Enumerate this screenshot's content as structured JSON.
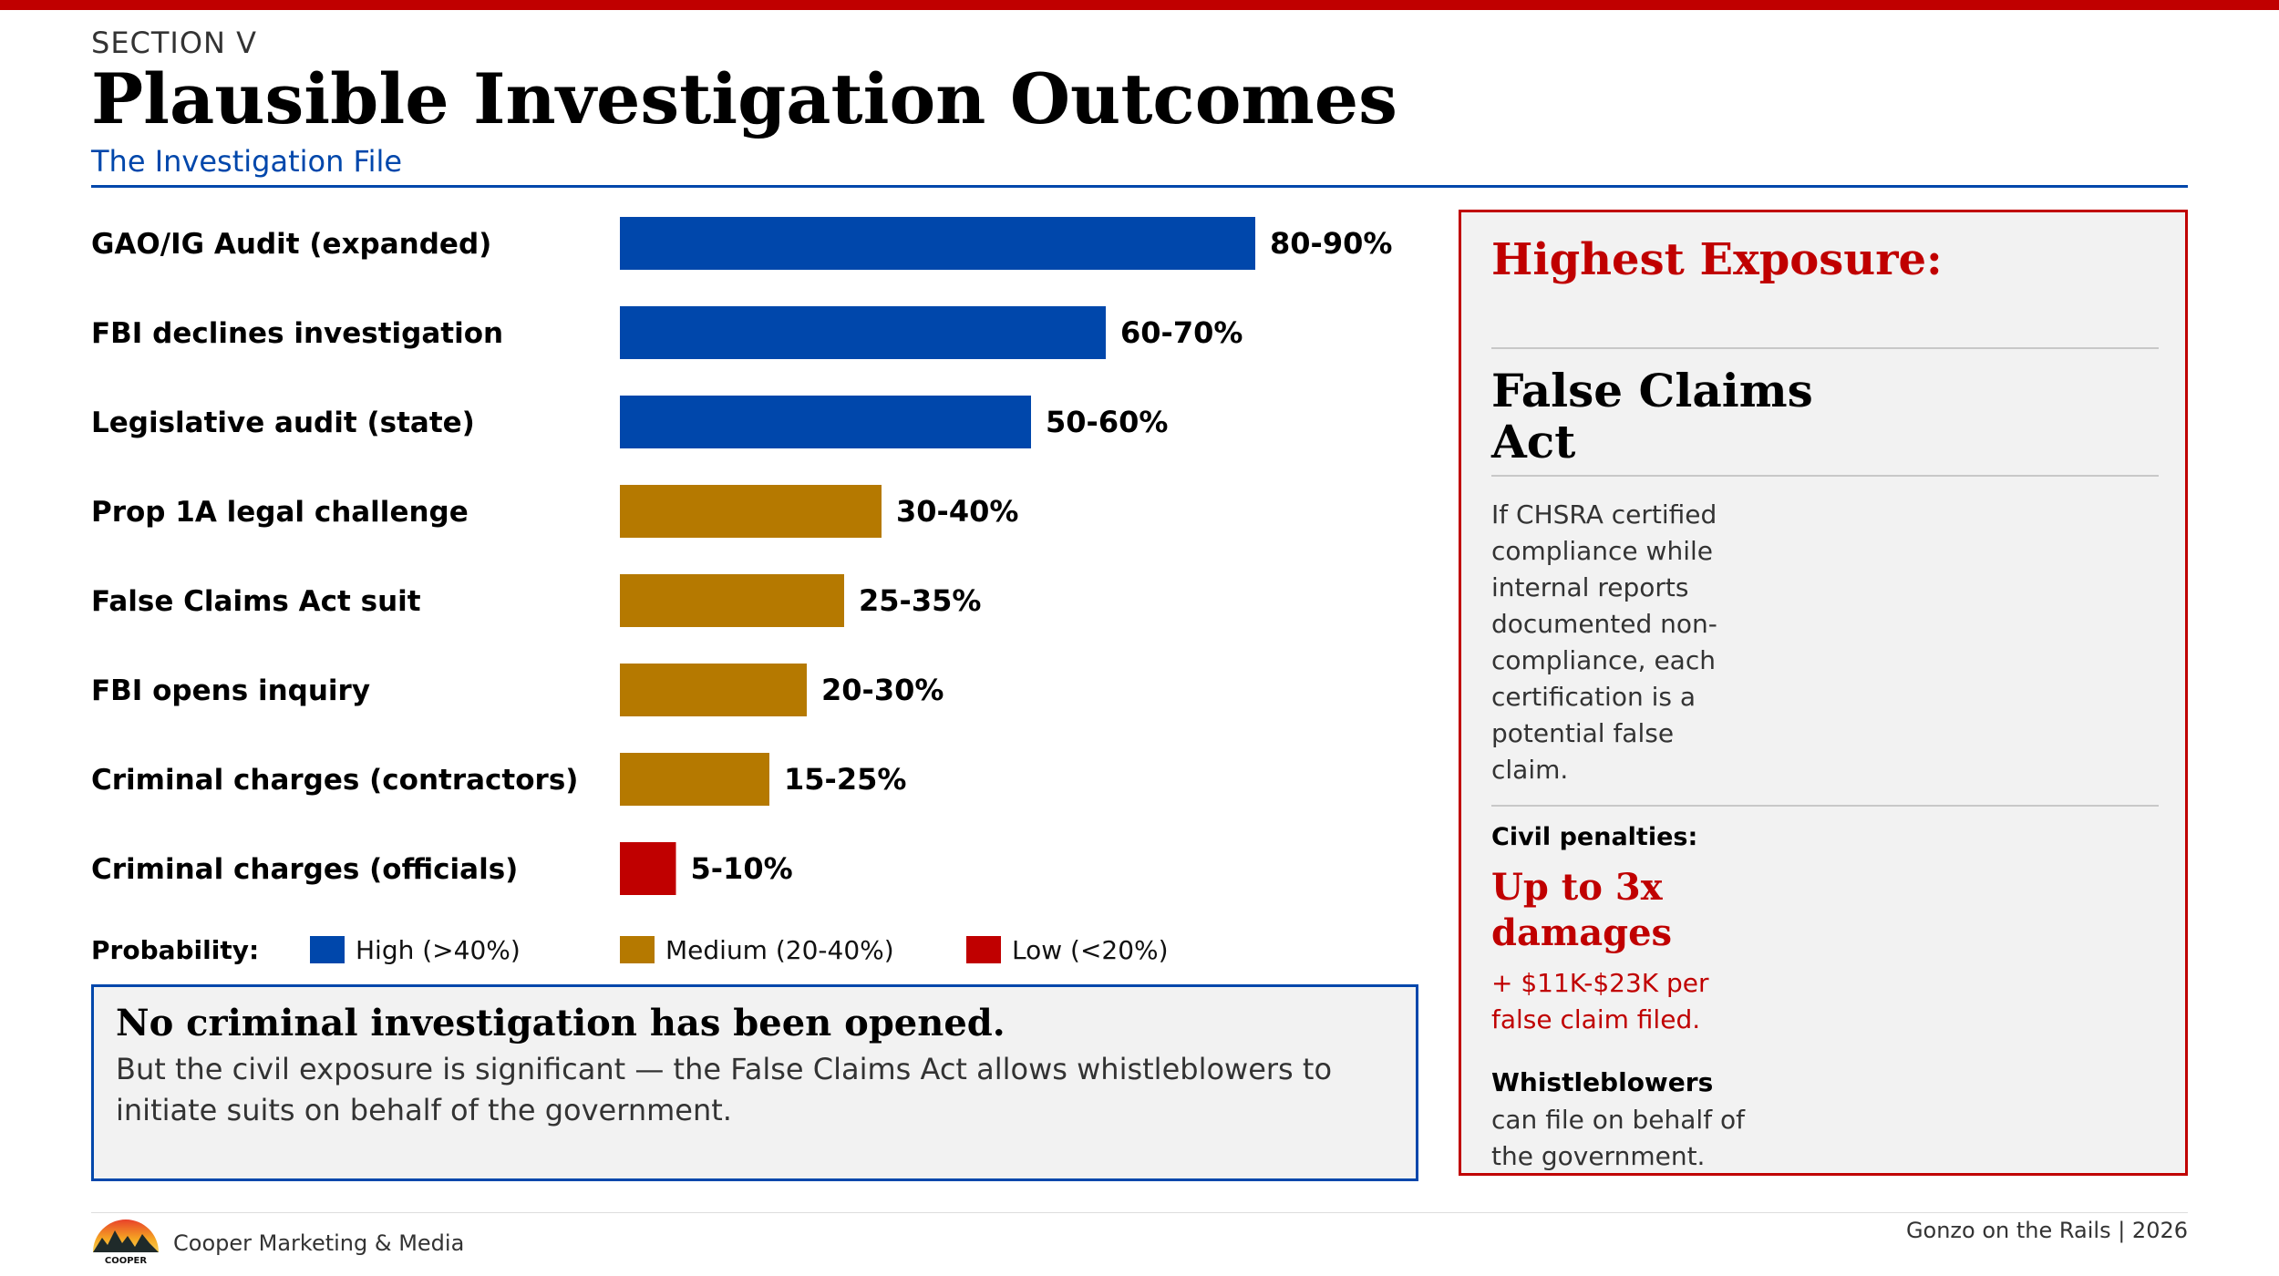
{
  "header": {
    "section": "SECTION V",
    "title": "Plausible Investigation Outcomes",
    "subtitle": "The Investigation File"
  },
  "colors": {
    "accent_red": "#c00000",
    "high": "#0047ab",
    "medium": "#b57900",
    "low": "#c00000"
  },
  "chart_data": {
    "type": "bar",
    "orientation": "horizontal",
    "categories": [
      "GAO/IG Audit (expanded)",
      "FBI declines investigation",
      "Legislative audit (state)",
      "Prop 1A legal challenge",
      "False Claims Act suit",
      "FBI opens inquiry",
      "Criminal charges (contractors)",
      "Criminal charges (officials)"
    ],
    "values": [
      85,
      65,
      55,
      35,
      30,
      25,
      20,
      7.5
    ],
    "value_labels": [
      "80-90%",
      "60-70%",
      "50-60%",
      "30-40%",
      "25-35%",
      "20-30%",
      "15-25%",
      "5-10%"
    ],
    "levels": [
      "high",
      "high",
      "high",
      "medium",
      "medium",
      "medium",
      "medium",
      "low"
    ],
    "xlim": [
      0,
      100
    ],
    "unit": "% probability (range midpoint)"
  },
  "legend": {
    "title": "Probability:",
    "items": [
      {
        "key": "high",
        "label": "High (>40%)"
      },
      {
        "key": "medium",
        "label": "Medium (20-40%)"
      },
      {
        "key": "low",
        "label": "Low (<20%)"
      }
    ]
  },
  "callout": {
    "heading": "No criminal investigation has been opened.",
    "body": "But the civil exposure is significant — the False Claims Act allows whistleblowers to initiate suits on behalf of the government."
  },
  "panel": {
    "heading": "Highest Exposure:",
    "law": "False Claims Act",
    "description": "If CHSRA certified compliance while internal reports documented non-compliance, each certification is a potential false claim.",
    "penalties_label": "Civil penalties:",
    "penalties_value": "Up to 3x damages",
    "penalties_note": "+ $11K-$23K per false claim filed.",
    "whistleblowers_label": "Whistleblowers",
    "whistleblowers_text": "can file on behalf of the government."
  },
  "footer": {
    "company": "Cooper Marketing & Media",
    "logo_text": "COOPER",
    "publication": "Gonzo on the Rails  |  2026"
  }
}
